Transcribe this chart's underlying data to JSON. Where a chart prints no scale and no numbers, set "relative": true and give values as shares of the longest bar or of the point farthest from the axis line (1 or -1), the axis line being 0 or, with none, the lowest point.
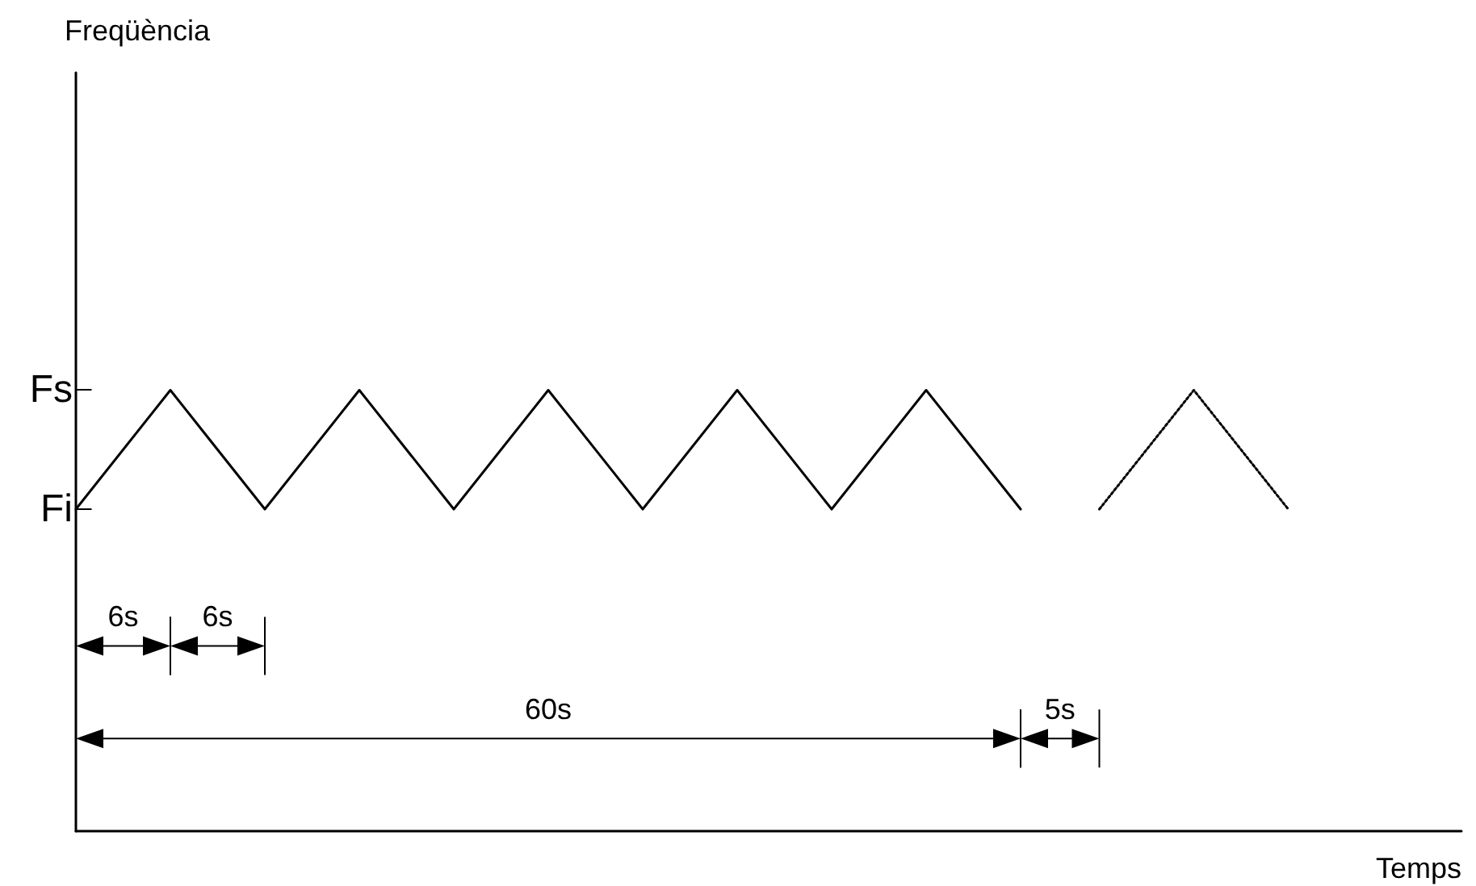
{
  "chart_data": {
    "type": "line",
    "xlabel": "Temps",
    "relative": true,
    "categories": [
      null,
      null,
      null,
      null,
      null,
      null,
      null,
      null,
      null,
      null,
      null,
      null,
      null,
      null,
      null,
      null,
      null,
      null,
      null,
      null,
      null,
      null,
      null,
      null,
      null,
      null,
      null,
      null,
      null,
      null,
      null,
      null,
      null,
      null,
      null,
      null,
      null,
      null,
      null,
      null,
      null,
      null,
      null,
      null,
      null,
      null,
      null,
      null,
      null,
      null,
      null,
      null,
      null,
      null,
      null,
      null,
      null,
      null,
      null,
      null,
      null,
      null,
      null,
      null,
      null,
      null,
      null,
      null,
      null,
      null,
      null,
      null,
      null,
      null,
      null,
      null,
      null,
      null,
      null,
      null,
      null,
      null,
      null,
      null,
      null,
      null,
      null,
      null,
      null
    ],
    "grid": false,
    "marker": "none",
    "ref_lines": [
      {
        "axis": "y",
        "value": 1,
        "label": "Fs"
      },
      {
        "axis": "y",
        "value": 0.73,
        "label": "Fi"
      }
    ],
    "series": [
      {
        "color": "#000000",
        "line_style": "solid",
        "values": [
          0.73,
          null,
          null,
          null,
          null,
          null,
          1,
          null,
          null,
          null,
          null,
          null,
          0.73,
          null,
          null,
          null,
          null,
          null,
          1,
          null,
          null,
          null,
          null,
          null,
          0.73,
          null,
          null,
          null,
          null,
          null,
          1,
          null,
          null,
          null,
          null,
          null,
          0.73,
          null,
          null,
          null,
          null,
          null,
          1,
          null,
          null,
          null,
          null,
          null,
          0.73,
          null,
          null,
          null,
          null,
          null,
          1,
          null,
          null,
          null,
          null,
          null,
          0.73,
          null,
          null,
          null,
          null,
          null,
          null,
          null,
          null,
          null,
          null,
          null,
          null,
          null,
          null,
          null,
          null,
          null,
          null,
          null,
          null,
          null,
          null,
          null,
          null,
          null,
          null,
          null,
          null
        ]
      },
      {
        "color": "#000000",
        "line_style": "dotted",
        "values": [
          null,
          null,
          null,
          null,
          null,
          null,
          null,
          null,
          null,
          null,
          null,
          null,
          null,
          null,
          null,
          null,
          null,
          null,
          null,
          null,
          null,
          null,
          null,
          null,
          null,
          null,
          null,
          null,
          null,
          null,
          null,
          null,
          null,
          null,
          null,
          null,
          null,
          null,
          null,
          null,
          null,
          null,
          null,
          null,
          null,
          null,
          null,
          null,
          null,
          null,
          null,
          null,
          null,
          null,
          null,
          null,
          null,
          null,
          null,
          null,
          null,
          null,
          null,
          null,
          null,
          0.73,
          null,
          null,
          null,
          null,
          null,
          1,
          null,
          null,
          null,
          null,
          null,
          0.73,
          null,
          null,
          null,
          null,
          null,
          null,
          null,
          null,
          null,
          null,
          null
        ]
      }
    ],
    "annotations": [
      "Freqüència",
      "6s",
      "6s",
      "60s",
      "5s"
    ]
  }
}
